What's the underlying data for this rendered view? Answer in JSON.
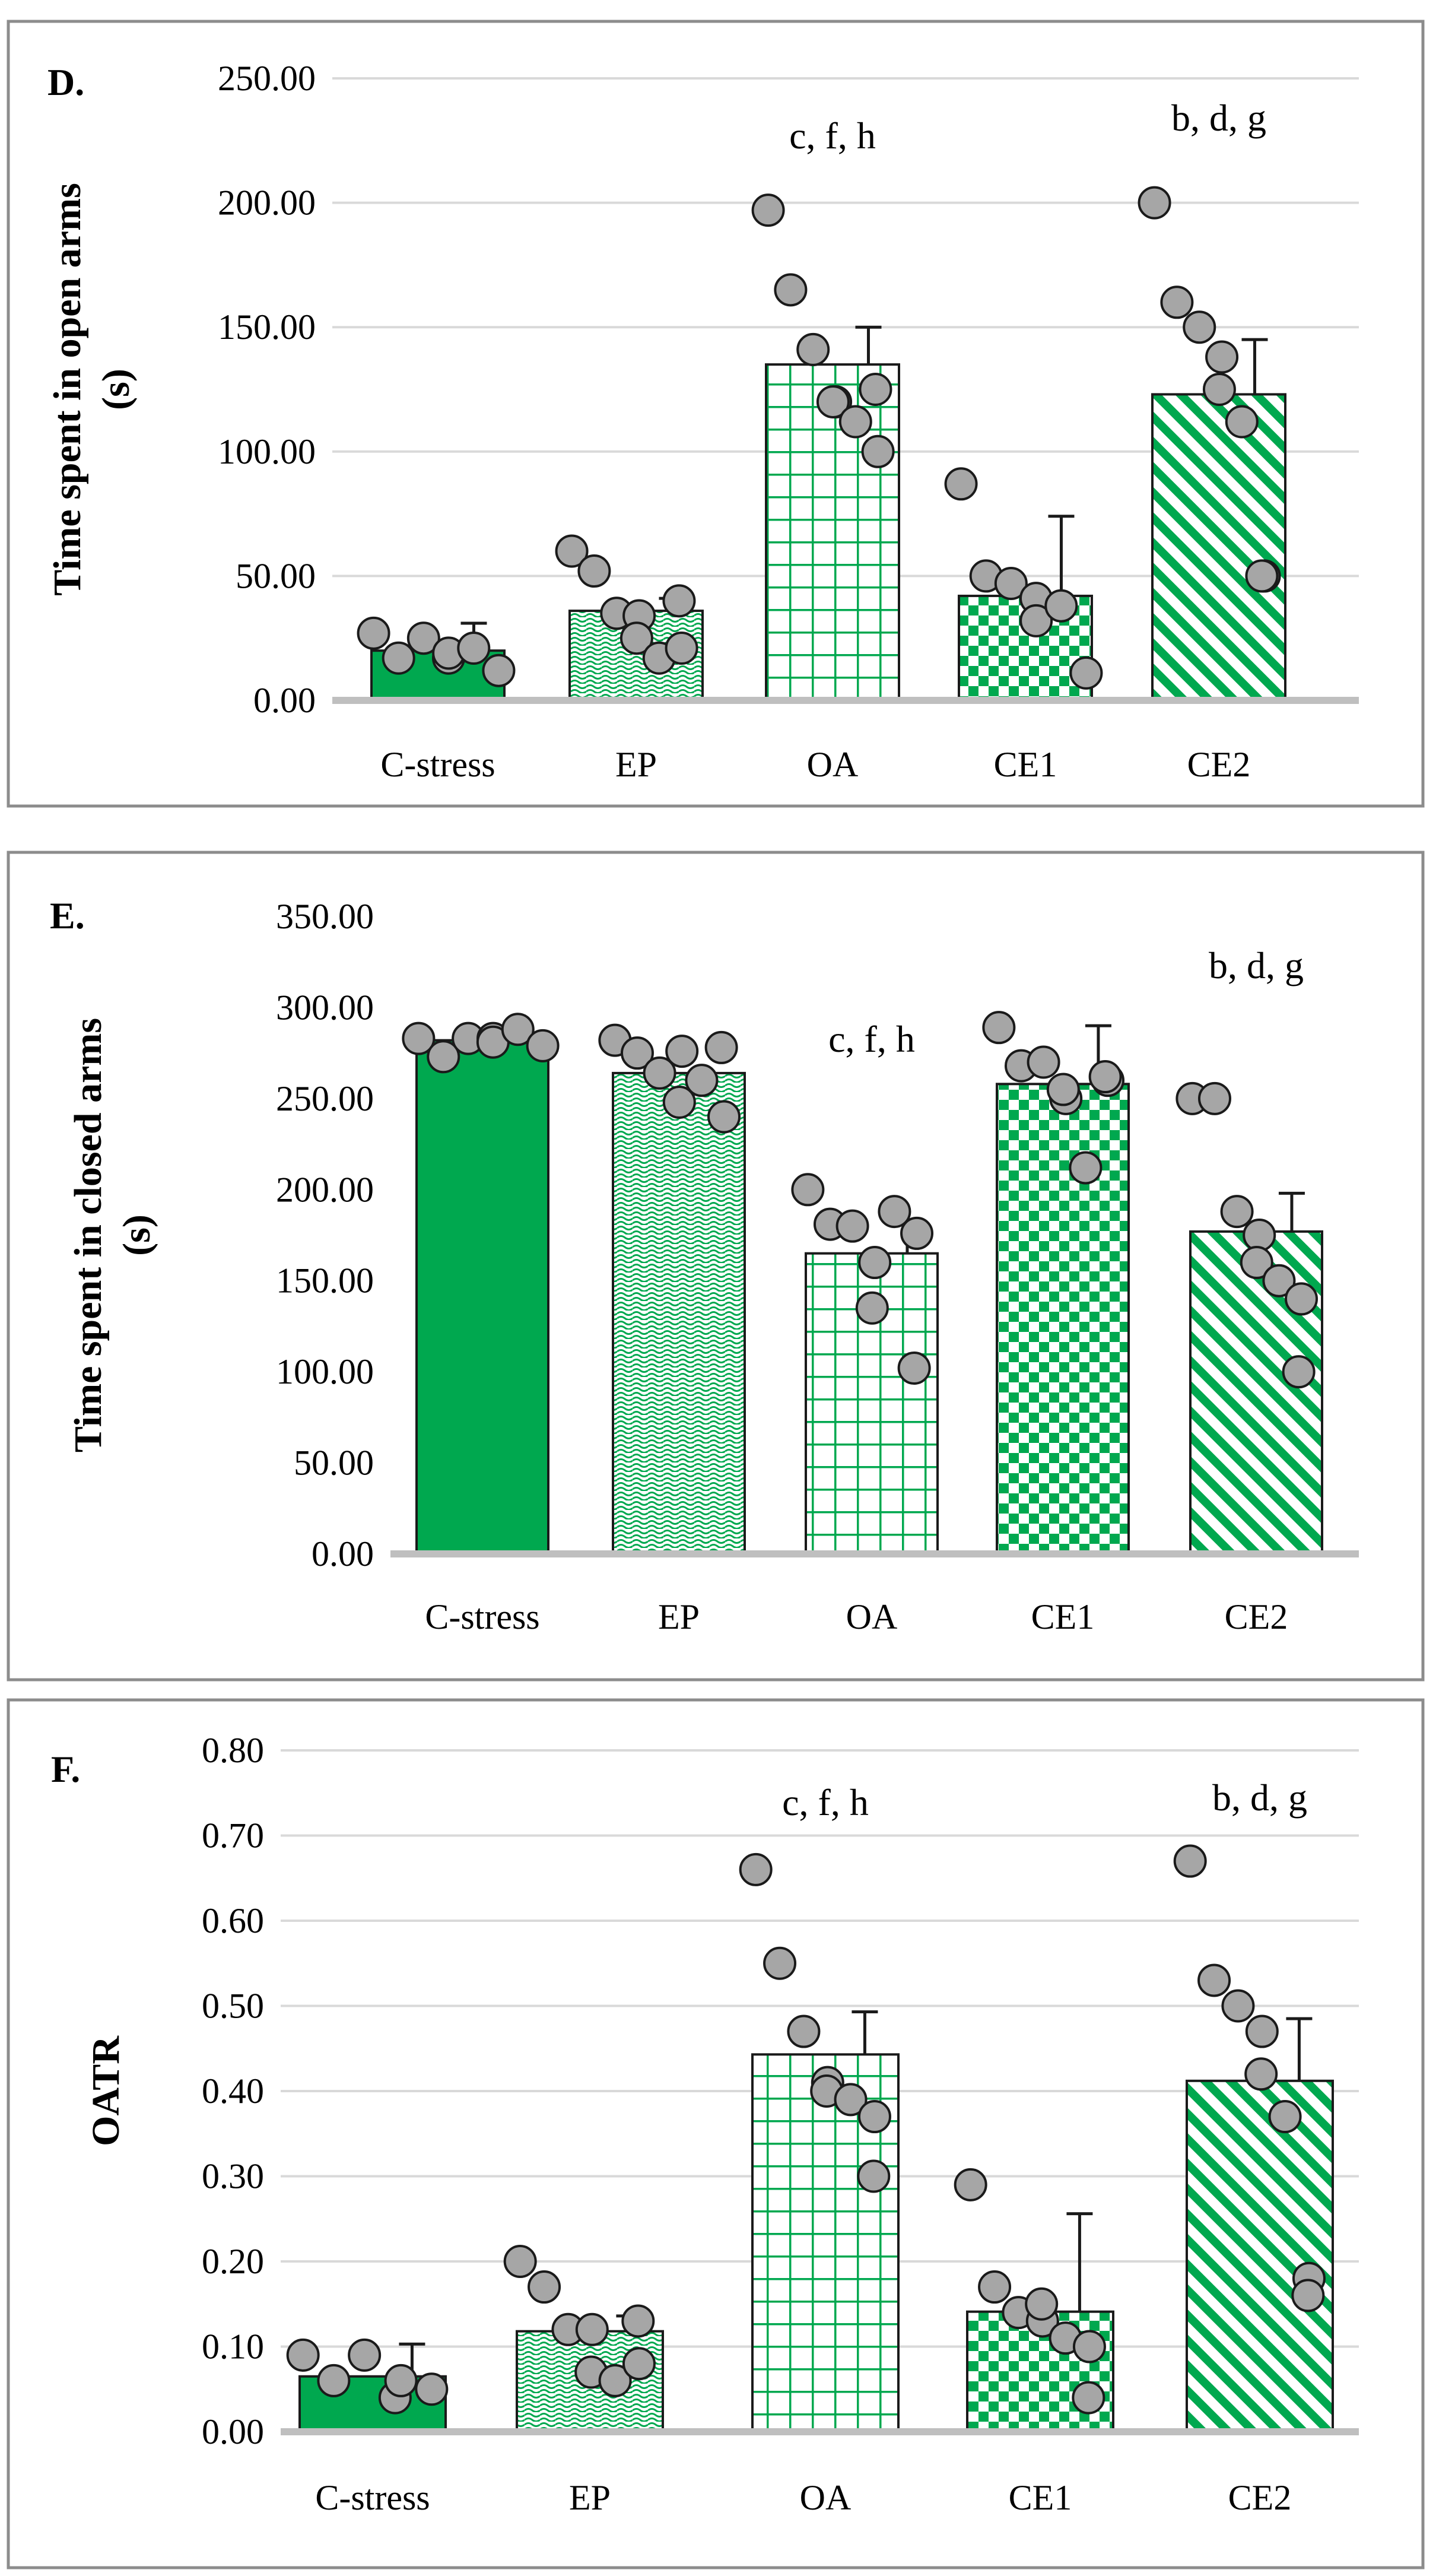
{
  "colors": {
    "bar_green": "#00a84f",
    "point_fill": "#a6a6a6",
    "axis": "#bfbfbf",
    "grid": "#d9d9d9",
    "frame": "#8c8c8c"
  },
  "chart_data": [
    {
      "type": "bar",
      "panel_label": "D.",
      "ylabel": "Time spent in open arms (s)",
      "ylabel_lines": [
        "Time spent in open arms",
        "(s)"
      ],
      "categories": [
        "C-stress",
        "EP",
        "OA",
        "CE1",
        "CE2"
      ],
      "patterns": [
        "solid",
        "wave",
        "grid",
        "checker",
        "diagonal"
      ],
      "ylim": [
        0,
        250
      ],
      "yticks": [
        0,
        50,
        100,
        150,
        200,
        250
      ],
      "ytick_labels": [
        "0.00",
        "50.00",
        "100.00",
        "150.00",
        "200.00",
        "250.00"
      ],
      "grid": true,
      "values": [
        20,
        36,
        135,
        42,
        123
      ],
      "errors": [
        11,
        5,
        15,
        32,
        22
      ],
      "points": [
        [
          27,
          17,
          25,
          17,
          19,
          21,
          12
        ],
        [
          60,
          52,
          35,
          34,
          25,
          17,
          21,
          40
        ],
        [
          197,
          165,
          141,
          120,
          120,
          112,
          100,
          125
        ],
        [
          87,
          50,
          47,
          41,
          32,
          38,
          11
        ],
        [
          200,
          160,
          150,
          138,
          125,
          112,
          50,
          50
        ]
      ],
      "annotations": [
        "",
        "",
        "c, f, h",
        "",
        "b, d, g"
      ]
    },
    {
      "type": "bar",
      "panel_label": "E.",
      "ylabel": "Time spent in closed arms (s)",
      "ylabel_lines": [
        "Time spent in closed arms",
        "(s)"
      ],
      "categories": [
        "C-stress",
        "EP",
        "OA",
        "CE1",
        "CE2"
      ],
      "patterns": [
        "solid",
        "wave",
        "grid",
        "checker",
        "diagonal"
      ],
      "ylim": [
        0,
        350
      ],
      "yticks": [
        0,
        50,
        100,
        150,
        200,
        250,
        300,
        350
      ],
      "ytick_labels": [
        "0.00",
        "50.00",
        "100.00",
        "150.00",
        "200.00",
        "250.00",
        "300.00",
        "350.00"
      ],
      "grid": false,
      "values": [
        282,
        264,
        165,
        258,
        177
      ],
      "errors": [
        10,
        0,
        17,
        32,
        21
      ],
      "points": [
        [
          283,
          273,
          283,
          283,
          281,
          288,
          279
        ],
        [
          282,
          275,
          264,
          276,
          248,
          260,
          240,
          278
        ],
        [
          200,
          181,
          180,
          160,
          135,
          188,
          176,
          102
        ],
        [
          289,
          268,
          270,
          250,
          255,
          212,
          260,
          262
        ],
        [
          250,
          250,
          188,
          175,
          160,
          150,
          140,
          100
        ]
      ],
      "annotations": [
        "",
        "",
        "c, f, h",
        "",
        "b, d, g"
      ]
    },
    {
      "type": "bar",
      "panel_label": "F.",
      "ylabel": "OATR",
      "ylabel_lines": [
        "OATR"
      ],
      "categories": [
        "C-stress",
        "EP",
        "OA",
        "CE1",
        "CE2"
      ],
      "patterns": [
        "solid",
        "wave",
        "grid",
        "checker",
        "diagonal"
      ],
      "ylim": [
        0,
        0.8
      ],
      "yticks": [
        0,
        0.1,
        0.2,
        0.3,
        0.4,
        0.5,
        0.6,
        0.7,
        0.8
      ],
      "ytick_labels": [
        "0.00",
        "0.10",
        "0.20",
        "0.30",
        "0.40",
        "0.50",
        "0.60",
        "0.70",
        "0.80"
      ],
      "grid": true,
      "values": [
        0.065,
        0.118,
        0.443,
        0.141,
        0.412
      ],
      "errors": [
        0.038,
        0.018,
        0.05,
        0.115,
        0.073
      ],
      "points": [
        [
          0.09,
          0.06,
          0.09,
          0.04,
          0.06,
          0.05
        ],
        [
          0.2,
          0.17,
          0.12,
          0.12,
          0.07,
          0.06,
          0.08,
          0.13
        ],
        [
          0.66,
          0.55,
          0.47,
          0.41,
          0.4,
          0.39,
          0.37,
          0.3
        ],
        [
          0.29,
          0.17,
          0.14,
          0.13,
          0.15,
          0.11,
          0.1,
          0.04
        ],
        [
          0.67,
          0.53,
          0.5,
          0.47,
          0.42,
          0.37,
          0.18,
          0.16
        ]
      ],
      "annotations": [
        "",
        "",
        "c, f, h",
        "",
        "b, d, g"
      ]
    }
  ]
}
